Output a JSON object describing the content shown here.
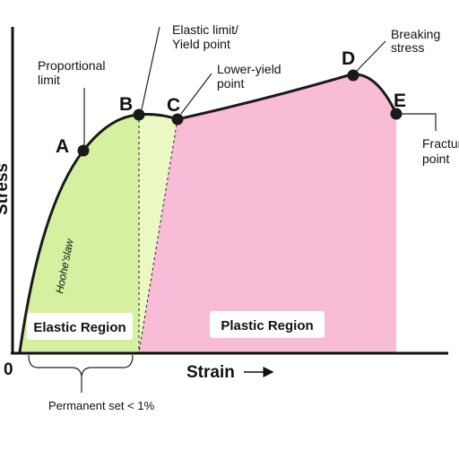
{
  "colors": {
    "elastic": "#d4f0a0",
    "yield_zone": "#ecf8c4",
    "plastic": "#f9bcd6",
    "curve": "#1a1a1a",
    "label_box": "#ffffff"
  },
  "axes": {
    "origin": "0",
    "x_label": "Strain",
    "y_label": "Stress"
  },
  "points": {
    "A": "A",
    "B": "B",
    "C": "C",
    "D": "D",
    "E": "E"
  },
  "annotations": {
    "proportional_1": "Proportional",
    "proportional_2": "limit",
    "elastic_limit_1": "Elastic limit/",
    "elastic_limit_2": "Yield point",
    "lower_yield_1": "Lower-yield",
    "lower_yield_2": "point",
    "breaking_1": "Breaking",
    "breaking_2": "stress",
    "fracture_1": "Fracture",
    "fracture_2": "point",
    "hookes_law": "Hoohe'slaw",
    "permanent_set": "Permanent set < 1%"
  },
  "regions": {
    "elastic": "Elastic Region",
    "plastic": "Plastic Region"
  }
}
